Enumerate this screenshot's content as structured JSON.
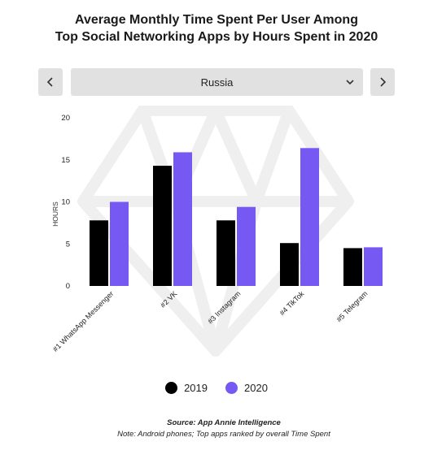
{
  "title": {
    "line1": "Average Monthly Time Spent Per User Among",
    "line2": "Top Social Networking Apps by Hours Spent in 2020"
  },
  "controls": {
    "prev_icon": "chevron-left-icon",
    "next_icon": "chevron-right-icon",
    "dropdown_icon": "chevron-down-icon",
    "selected_country": "Russia"
  },
  "colors": {
    "2019": "#000000",
    "2020": "#7559f2",
    "control_bg": "#e1e1e1",
    "watermark": "#efefef"
  },
  "chart_data": {
    "type": "bar",
    "ylabel": "HOURS",
    "ylim": [
      0,
      20
    ],
    "yticks": [
      0,
      5,
      10,
      15,
      20
    ],
    "categories": [
      "#1 WhatsApp Messenger",
      "#2 VK",
      "#3 Instagram",
      "#4 TikTok",
      "#5 Telegram"
    ],
    "series": [
      {
        "name": "2019",
        "values": [
          7.8,
          14.3,
          7.8,
          5.1,
          4.5
        ]
      },
      {
        "name": "2020",
        "values": [
          10.0,
          15.9,
          9.4,
          16.4,
          4.6
        ]
      }
    ],
    "legend_position": "bottom",
    "grid": false
  },
  "legend": [
    {
      "label": "2019",
      "color": "#000000"
    },
    {
      "label": "2020",
      "color": "#7559f2"
    }
  ],
  "footer": {
    "source": "Source: App Annie Intelligence",
    "note": "Note: Android phones; Top apps ranked by overall Time Spent"
  }
}
